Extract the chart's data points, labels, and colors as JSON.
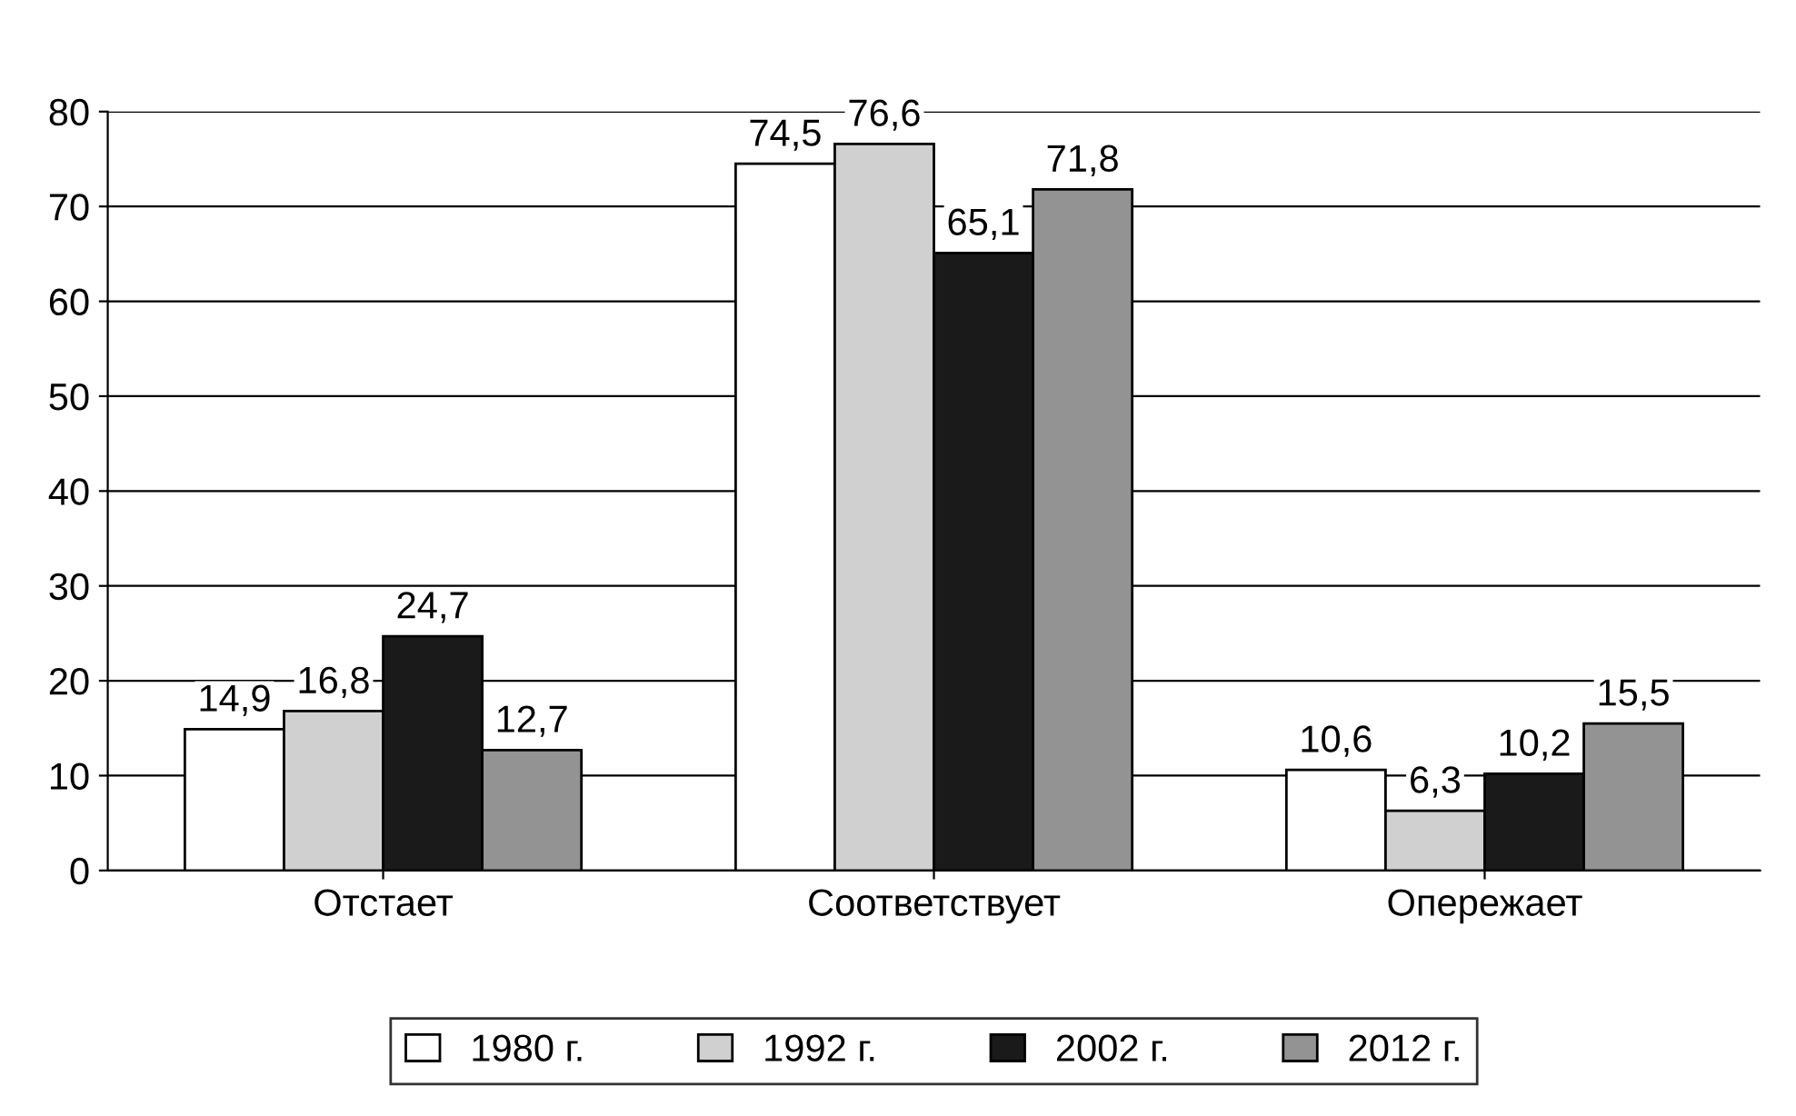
{
  "chart_data": {
    "type": "bar",
    "categories": [
      "Отстает",
      "Соответствует",
      "Опережает"
    ],
    "series": [
      {
        "name": "1980 г.",
        "color": "#ffffff",
        "values": [
          14.9,
          74.5,
          10.6
        ],
        "value_labels": [
          "14,9",
          "74,5",
          "10,6"
        ]
      },
      {
        "name": "1992 г.",
        "color": "#d0d0d0",
        "values": [
          16.8,
          76.6,
          6.3
        ],
        "value_labels": [
          "16,8",
          "76,6",
          "6,3"
        ]
      },
      {
        "name": "2002 г.",
        "color": "#1a1a1a",
        "values": [
          24.7,
          65.1,
          10.2
        ],
        "value_labels": [
          "24,7",
          "65,1",
          "10,2"
        ]
      },
      {
        "name": "2012 г.",
        "color": "#939393",
        "values": [
          12.7,
          71.8,
          15.5
        ],
        "value_labels": [
          "12,7",
          "71,8",
          "15,5"
        ]
      }
    ],
    "ylim": [
      0,
      80
    ],
    "yticks": [
      0,
      10,
      20,
      30,
      40,
      50,
      60,
      70,
      80
    ],
    "grid": "y",
    "legend": "bottom"
  }
}
